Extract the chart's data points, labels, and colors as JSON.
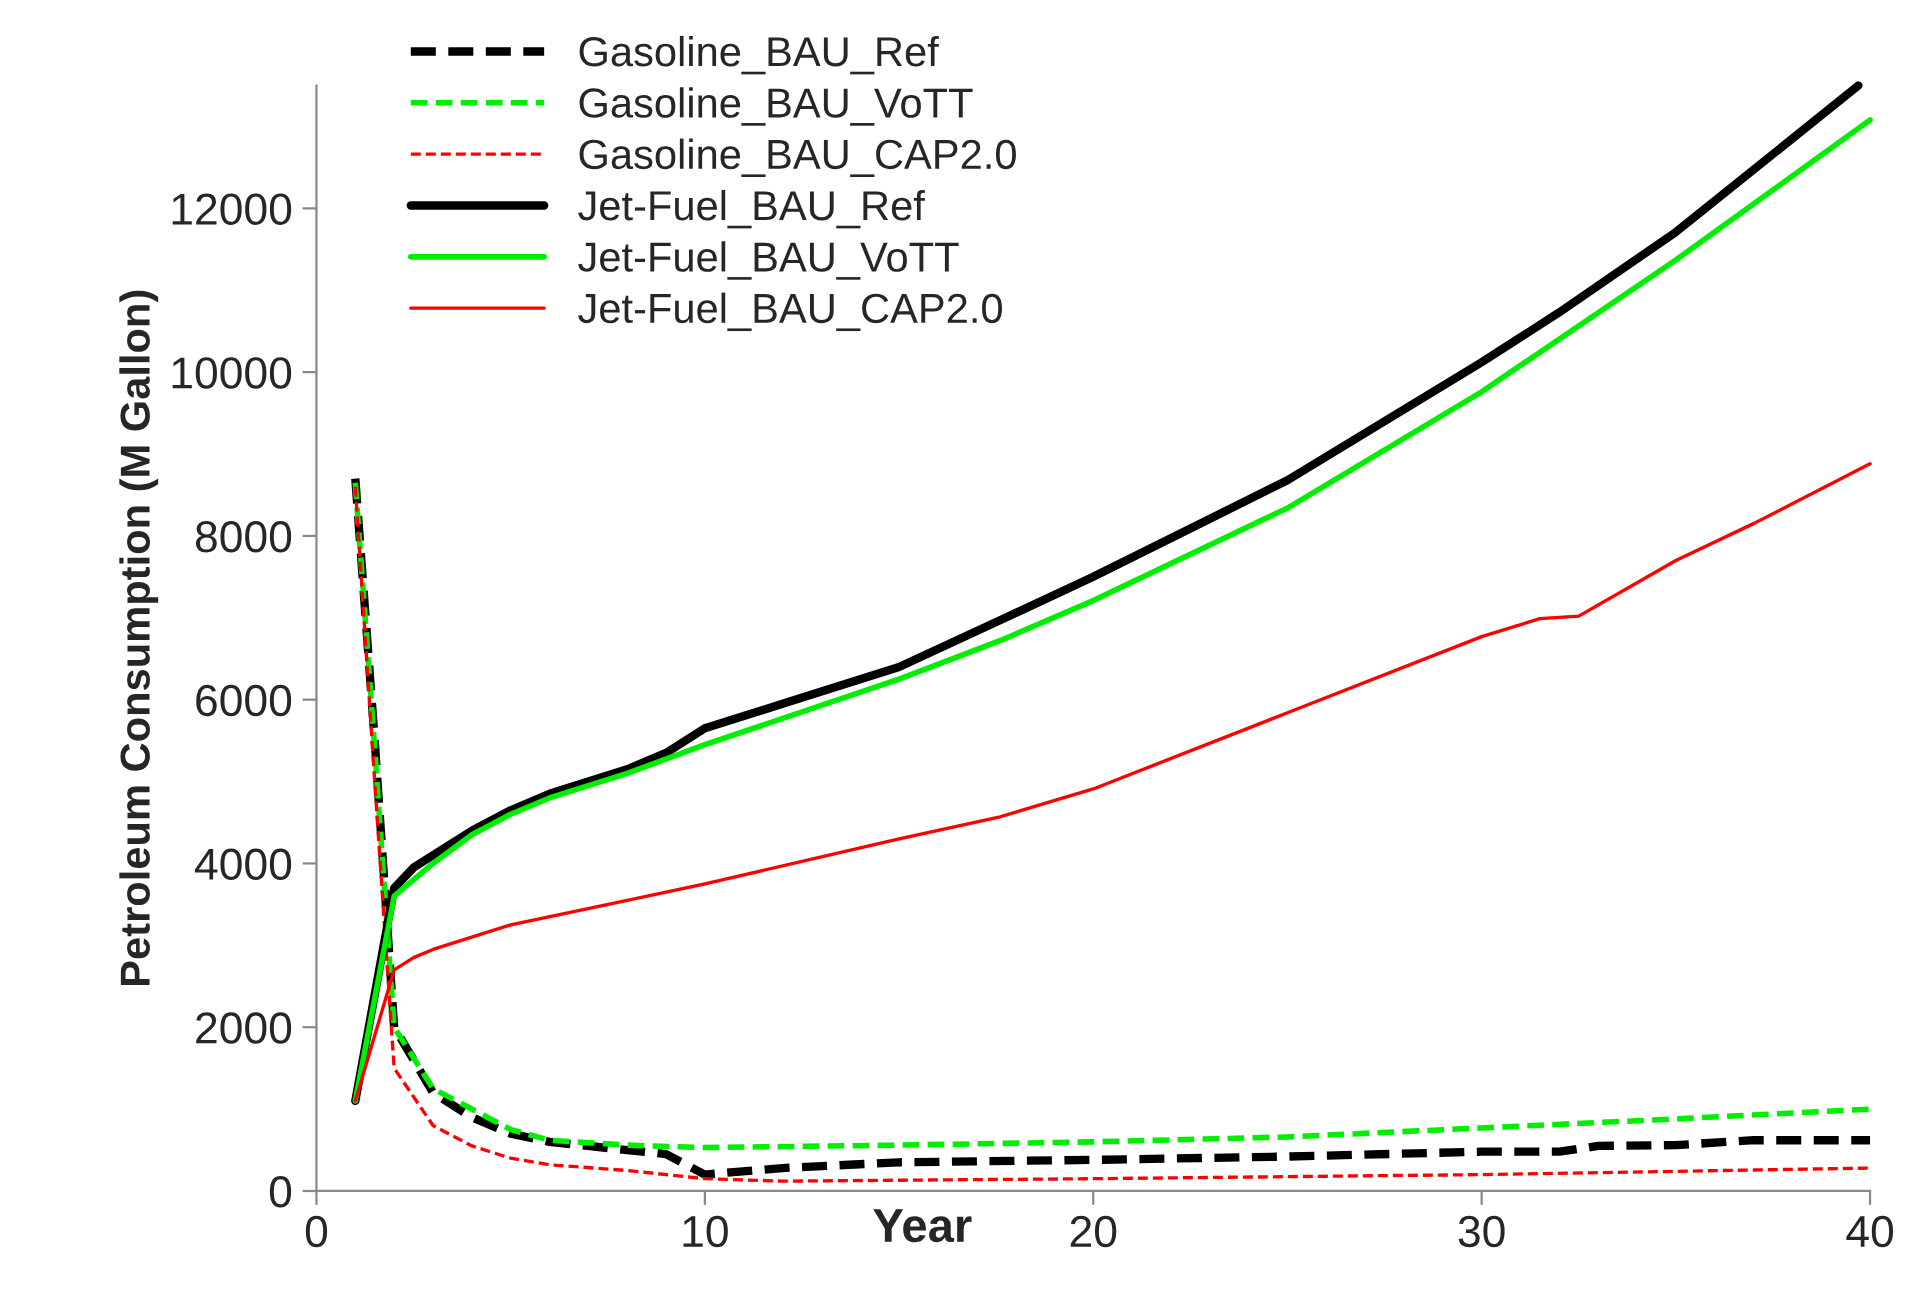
{
  "chart_data": {
    "type": "line",
    "xlabel": "Year",
    "ylabel": "Petroleum Consumption (M Gallon)",
    "xlim": [
      0,
      40
    ],
    "xticks": [
      0,
      10,
      20,
      30,
      40
    ],
    "ylim": [
      0,
      13500
    ],
    "yticks": [
      0,
      2000,
      4000,
      6000,
      8000,
      10000,
      12000
    ],
    "grid": false,
    "legend": "top left",
    "marker": "none",
    "series": [
      {
        "name": "Gasoline_BAU_Ref",
        "color": "#000000",
        "line_style": "dashed",
        "x": [
          1,
          1.5,
          2,
          3,
          4,
          5,
          6,
          8,
          9,
          10,
          12,
          15,
          20,
          25,
          30,
          32,
          33,
          35,
          37,
          40
        ],
        "values": [
          8700,
          5500,
          2000,
          1200,
          900,
          700,
          600,
          500,
          450,
          200,
          280,
          350,
          380,
          420,
          480,
          480,
          550,
          560,
          620,
          620
        ]
      },
      {
        "name": "Gasoline_BAU_VoTT",
        "color": "#00ee00",
        "line_style": "dashed",
        "x": [
          1,
          1.5,
          2,
          3,
          5,
          6,
          8,
          10,
          15,
          20,
          25,
          30,
          35,
          40
        ],
        "values": [
          8650,
          5400,
          2000,
          1250,
          750,
          620,
          560,
          530,
          560,
          600,
          660,
          770,
          880,
          1000
        ]
      },
      {
        "name": "Gasoline_BAU_CAP2.0",
        "color": "#ff0000",
        "line_style": "dashed",
        "x": [
          1,
          1.5,
          2,
          3,
          4,
          5,
          6,
          8,
          10,
          12,
          20,
          30,
          40
        ],
        "values": [
          8600,
          5000,
          1500,
          800,
          550,
          400,
          320,
          250,
          150,
          120,
          150,
          200,
          280
        ]
      },
      {
        "name": "Jet-Fuel_BAU_Ref",
        "color": "#000000",
        "line_style": "solid",
        "x": [
          1,
          2,
          2.5,
          3,
          4,
          5,
          6,
          7,
          8,
          9,
          10,
          12,
          15,
          17.6,
          20,
          25,
          30,
          32,
          35,
          39.7
        ],
        "values": [
          1100,
          3700,
          3950,
          4100,
          4400,
          4650,
          4850,
          5000,
          5150,
          5350,
          5650,
          5950,
          6400,
          6970,
          7500,
          8680,
          10120,
          10730,
          11710,
          13500
        ]
      },
      {
        "name": "Jet-Fuel_BAU_VoTT",
        "color": "#00ee00",
        "line_style": "solid",
        "x": [
          1,
          2,
          3,
          4,
          5,
          6,
          8,
          10,
          15,
          17.6,
          20,
          25,
          30,
          35,
          40
        ],
        "values": [
          1100,
          3600,
          4000,
          4350,
          4600,
          4800,
          5100,
          5450,
          6250,
          6720,
          7210,
          8340,
          9760,
          11370,
          13080
        ]
      },
      {
        "name": "Jet-Fuel_BAU_CAP2.0",
        "color": "#ff0000",
        "line_style": "solid",
        "x": [
          1,
          2,
          2.5,
          3,
          5,
          8,
          10,
          15,
          17.6,
          20,
          25,
          30,
          31.5,
          32.5,
          35,
          37,
          40
        ],
        "values": [
          1100,
          2700,
          2850,
          2950,
          3250,
          3550,
          3750,
          4300,
          4570,
          4910,
          5840,
          6770,
          6990,
          7020,
          7700,
          8150,
          8880
        ]
      }
    ]
  }
}
